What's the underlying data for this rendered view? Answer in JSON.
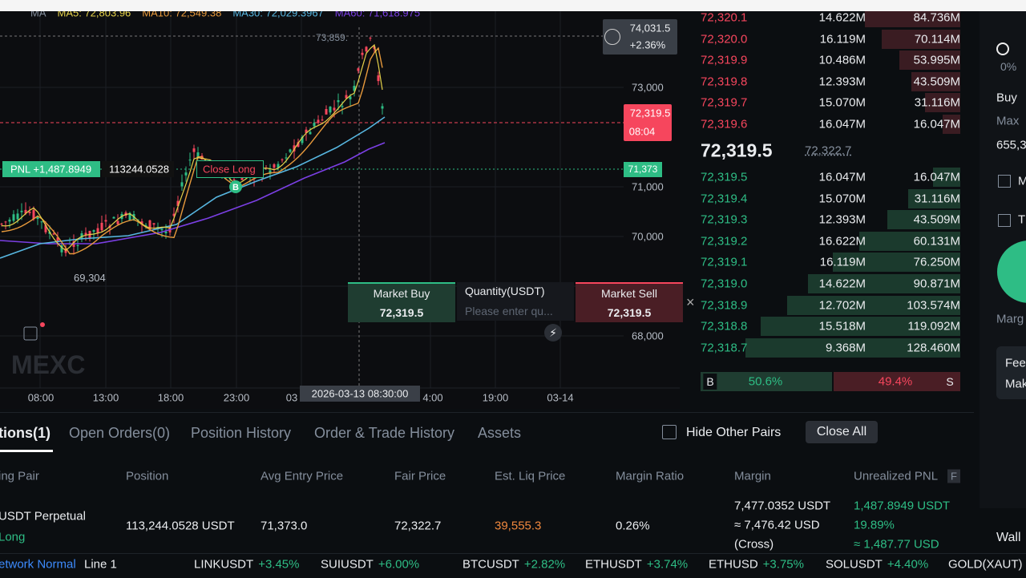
{
  "chart": {
    "ma_legend": [
      "MA",
      "MA5: 72,803.96",
      "MA10: 72,549.38",
      "MA30: 72,029.3967",
      "MA60: 71,618.975"
    ],
    "high_label": "73,859.",
    "low_label": "69,304",
    "price_axis": {
      "crosshair_price": "74,031.5",
      "crosshair_change": "+2.36%",
      "tick_73000": "73,000",
      "last_price": "72,319.5",
      "countdown": "08:04",
      "entry_price": "71,373",
      "tick_71000": "71,000",
      "tick_70000": "70,000",
      "tick_68000": "68,000"
    },
    "time_axis": [
      "08:00",
      "13:00",
      "18:00",
      "23:00",
      "03",
      "4:00",
      "19:00",
      "03-14"
    ],
    "crosshair_time": "2026-03-13 08:30:00",
    "pnl": {
      "label": "PNL +1,487.8949",
      "quantity": "113244.0528",
      "close": "Close Long"
    },
    "buy_marker": "B",
    "watermark": "MEXC",
    "quick_trade": {
      "buy_label": "Market Buy",
      "buy_price": "72,319.5",
      "qty_label": "Quantity(USDT)",
      "qty_placeholder": "Please enter qu...",
      "sell_label": "Market Sell",
      "sell_price": "72,319.5"
    }
  },
  "order_book": {
    "asks": [
      [
        "72,320.1",
        "14.622M",
        "84.736M"
      ],
      [
        "72,320.0",
        "16.119M",
        "70.114M"
      ],
      [
        "72,319.9",
        "10.486M",
        "53.995M"
      ],
      [
        "72,319.8",
        "12.393M",
        "43.509M"
      ],
      [
        "72,319.7",
        "15.070M",
        "31.116M"
      ],
      [
        "72,319.6",
        "16.047M",
        "16.047M"
      ]
    ],
    "last_price": "72,319.5",
    "fair_price": "72,322.7",
    "bids": [
      [
        "72,319.5",
        "16.047M",
        "16.047M"
      ],
      [
        "72,319.4",
        "15.070M",
        "31.116M"
      ],
      [
        "72,319.3",
        "12.393M",
        "43.509M"
      ],
      [
        "72,319.2",
        "16.622M",
        "60.131M"
      ],
      [
        "72,319.1",
        "16.119M",
        "76.250M"
      ],
      [
        "72,319.0",
        "14.622M",
        "90.871M"
      ],
      [
        "72,318.9",
        "12.702M",
        "103.574M"
      ],
      [
        "72,318.8",
        "15.518M",
        "119.092M"
      ],
      [
        "72,318.7",
        "9.368M",
        "128.460M"
      ]
    ],
    "buy_tag": "B",
    "buy_ratio": "50.6%",
    "sell_ratio": "49.4%",
    "sell_tag": "S"
  },
  "side_panel": {
    "percent": "0%",
    "buy": "Buy",
    "max": "Max",
    "amount": "655,3",
    "option_m": "M",
    "option_t": "T",
    "margin": "Marg",
    "fee": "Fee",
    "maker": "Mak",
    "wallet": "Wall"
  },
  "positions": {
    "tabs": [
      "tions(1)",
      "Open Orders(0)",
      "Position History",
      "Order & Trade History",
      "Assets"
    ],
    "hide_other_pairs": "Hide Other Pairs",
    "close_all": "Close All",
    "headers": [
      "ing Pair",
      "Position",
      "Avg Entry Price",
      "Fair Price",
      "Est. Liq Price",
      "Margin Ratio",
      "Margin",
      "Unrealized PNL"
    ],
    "pnl_flag": "F",
    "row": {
      "pair": "USDT  Perpetual",
      "side": "Long",
      "position": "113,244.0528 USDT",
      "avg_entry": "71,373.0",
      "fair": "72,322.7",
      "liq": "39,555.3",
      "margin_ratio": "0.26%",
      "margin": [
        "7,477.0352 USDT",
        "≈ 7,476.42 USD",
        "(Cross)"
      ],
      "pnl": [
        "1,487.8949 USDT",
        "19.89%",
        "≈ 1,487.77 USD"
      ]
    }
  },
  "ticker": {
    "network": "etwork Normal",
    "line": "Line 1",
    "items": [
      [
        "LINKUSDT",
        "+3.45%"
      ],
      [
        "SUIUSDT",
        "+6.00%"
      ],
      [
        "BTCUSDT",
        "+2.82%"
      ],
      [
        "ETHUSDT",
        "+3.74%"
      ],
      [
        "ETHUSD",
        "+3.75%"
      ],
      [
        "SOLUSDT",
        "+4.40%"
      ]
    ],
    "last_item": "GOLD(XAUT)"
  }
}
